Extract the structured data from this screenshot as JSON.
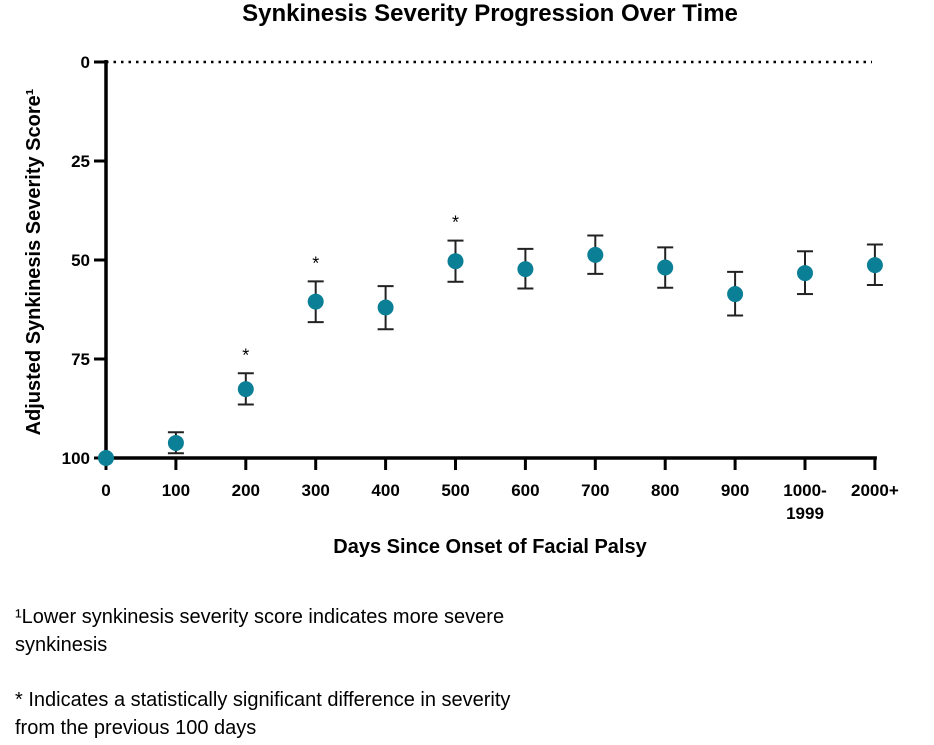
{
  "chart_data": {
    "type": "scatter",
    "title": "Synkinesis Severity Progression Over Time",
    "xlabel": "Days Since Onset of Facial Palsy",
    "ylabel": "Adjusted Synkinesis Severity Score¹",
    "categories": [
      "0",
      "100",
      "200",
      "300",
      "400",
      "500",
      "600",
      "700",
      "800",
      "900",
      "1000-1999",
      "2000+"
    ],
    "values": [
      100,
      96.2,
      82.6,
      60.5,
      62.0,
      50.3,
      52.3,
      48.7,
      51.9,
      58.6,
      53.3,
      51.3
    ],
    "error_low": [
      100,
      93.5,
      78.6,
      55.4,
      56.6,
      45.1,
      47.2,
      43.8,
      46.8,
      53.0,
      47.8,
      46.1
    ],
    "error_high": [
      100,
      98.8,
      86.5,
      65.7,
      67.5,
      55.5,
      57.2,
      53.5,
      57.0,
      64.0,
      58.6,
      56.3
    ],
    "significant": [
      false,
      false,
      true,
      true,
      false,
      true,
      false,
      false,
      false,
      false,
      false,
      false
    ],
    "significance_marker": "*",
    "ylim": [
      0,
      100
    ],
    "y_inverted": true,
    "yticks": [
      0,
      25,
      50,
      75,
      100
    ],
    "reference_line": {
      "y": 0,
      "style": "dotted"
    },
    "grid": false,
    "marker_color": "#0a7f96"
  },
  "notes": {
    "footnote1": "¹Lower synkinesis severity score indicates more severe synkinesis",
    "footnote2": "* Indicates a statistically significant difference in severity from the previous 100 days"
  }
}
